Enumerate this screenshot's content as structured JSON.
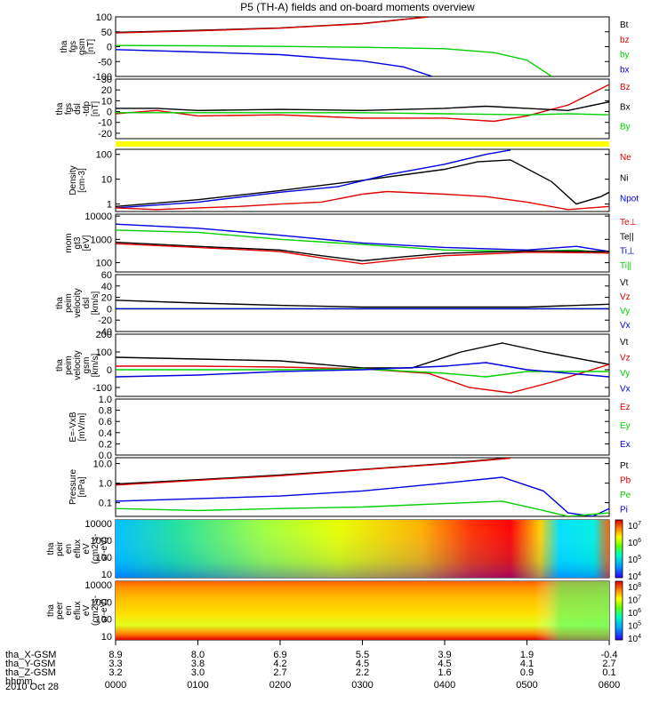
{
  "title": "P5 (TH-A) fields and on-board moments overview",
  "date_label": "2010 Oct 28",
  "colors": {
    "black": "#000000",
    "red": "#e00000",
    "green": "#00d000",
    "blue": "#0000e0",
    "yellow": "#ffff00"
  },
  "time_axis": {
    "ticks": [
      "0000",
      "0100",
      "0200",
      "0300",
      "0400",
      "0500",
      "0600"
    ],
    "rows": [
      {
        "label": "tha_X-GSM",
        "values": [
          "8.9",
          "8.0",
          "6.9",
          "5.5",
          "3.9",
          "1.9",
          "-0.4"
        ]
      },
      {
        "label": "tha_Y-GSM",
        "values": [
          "3.3",
          "3.8",
          "4.2",
          "4.5",
          "4.5",
          "4.1",
          "2.7"
        ]
      },
      {
        "label": "tha_Z-GSM",
        "values": [
          "3.2",
          "3.0",
          "2.7",
          "2.2",
          "1.6",
          "0.9",
          "0.1"
        ]
      },
      {
        "label": "hhmm",
        "values": []
      }
    ]
  },
  "chart_data": [
    {
      "type": "line",
      "ylabel": [
        "tha",
        "fgs",
        "gsm",
        "[nT]"
      ],
      "ylim": [
        -100,
        100
      ],
      "yticks": [
        "100",
        "50",
        "0",
        "-50",
        "-100"
      ],
      "legend": [
        "Bt",
        "bz",
        "by",
        "bx"
      ],
      "series": [
        {
          "name": "Bt",
          "color": "black",
          "x": [
            0,
            1,
            2,
            3,
            3.8
          ],
          "y": [
            48,
            55,
            63,
            78,
            100
          ]
        },
        {
          "name": "bz",
          "color": "red",
          "x": [
            0,
            1,
            2,
            3,
            3.8
          ],
          "y": [
            46,
            53,
            62,
            77,
            100
          ]
        },
        {
          "name": "by",
          "color": "green",
          "x": [
            0,
            1,
            2,
            3,
            4,
            4.6,
            5.0,
            5.3
          ],
          "y": [
            4,
            3,
            1,
            -2,
            -7,
            -20,
            -45,
            -100
          ]
        },
        {
          "name": "bx",
          "color": "blue",
          "x": [
            0,
            1,
            2,
            3,
            3.5,
            3.85
          ],
          "y": [
            -10,
            -18,
            -27,
            -48,
            -68,
            -100
          ]
        }
      ]
    },
    {
      "type": "line",
      "ylabel": [
        "tha",
        "fgs",
        "dsl",
        "-tdp",
        "[nT]"
      ],
      "ylim": [
        -25,
        30
      ],
      "yticks": [
        "30",
        "20",
        "10",
        "0",
        "-10",
        "-20"
      ],
      "legend": [
        "Bz",
        "Bx",
        "By"
      ],
      "series": [
        {
          "name": "Bz",
          "color": "red",
          "x": [
            0,
            0.5,
            1,
            2,
            3,
            4,
            4.6,
            5,
            5.5,
            6
          ],
          "y": [
            -2,
            1,
            -4,
            -3,
            -6,
            -6,
            -9,
            -4,
            6,
            25
          ]
        },
        {
          "name": "Bx",
          "color": "black",
          "x": [
            0,
            0.5,
            1,
            2,
            3,
            4,
            4.5,
            5,
            5.5,
            6
          ],
          "y": [
            3,
            3,
            1,
            2,
            1,
            3,
            5,
            3,
            1,
            9
          ]
        },
        {
          "name": "By",
          "color": "green",
          "x": [
            0,
            1,
            2,
            3,
            4,
            5,
            5.5,
            6
          ],
          "y": [
            -1,
            -1,
            -1,
            -1,
            -2,
            -3,
            -2,
            -3
          ]
        }
      ]
    },
    {
      "type": "line",
      "ylabel": [
        "Density",
        "[cm-3]"
      ],
      "ylim": [
        0.5,
        160
      ],
      "yscale": "log",
      "yticks": [
        "100",
        "10",
        "1"
      ],
      "legend": [
        "Ne",
        "Ni",
        "Npot"
      ],
      "series": [
        {
          "name": "Ni",
          "color": "black",
          "x": [
            0,
            1,
            2,
            3,
            4,
            4.4,
            4.8,
            5.3,
            5.6,
            5.9,
            6.0
          ],
          "y": [
            0.8,
            1.5,
            3.5,
            9,
            25,
            50,
            60,
            8,
            1,
            2,
            3
          ]
        },
        {
          "name": "Npot",
          "color": "blue",
          "x": [
            0,
            1,
            2,
            2.7,
            3.3,
            4.0,
            4.5,
            4.8
          ],
          "y": [
            0.7,
            1.2,
            3,
            5,
            15,
            40,
            100,
            150
          ]
        },
        {
          "name": "Ne",
          "color": "red",
          "x": [
            0,
            0.5,
            1,
            1.5,
            2,
            2.5,
            3,
            3.3,
            4,
            4.5,
            5,
            5.5,
            6
          ],
          "y": [
            0.7,
            0.6,
            0.7,
            0.8,
            1,
            1.2,
            2.5,
            3.2,
            2.5,
            2,
            1.2,
            0.6,
            0.8
          ]
        }
      ]
    },
    {
      "type": "line",
      "ylabel": [
        "mom",
        "gt3",
        "[eV]"
      ],
      "ylim": [
        40,
        12000
      ],
      "yscale": "log",
      "yticks": [
        "10000",
        "1000",
        "100"
      ],
      "legend": [
        "Te⊥",
        "Te||",
        "Ti⊥",
        "Ti||"
      ],
      "series": [
        {
          "name": "Ti⊥",
          "color": "blue",
          "x": [
            0,
            1,
            2,
            3,
            4,
            5,
            5.6,
            6
          ],
          "y": [
            4500,
            3000,
            1500,
            700,
            450,
            350,
            500,
            300
          ]
        },
        {
          "name": "Ti||",
          "color": "green",
          "x": [
            0,
            1,
            2,
            3,
            4,
            5,
            5.6,
            6
          ],
          "y": [
            2500,
            2000,
            1000,
            600,
            350,
            300,
            350,
            250
          ]
        },
        {
          "name": "Te||",
          "color": "black",
          "x": [
            0,
            1,
            2,
            2.5,
            3,
            3.5,
            4,
            5,
            6
          ],
          "y": [
            750,
            500,
            350,
            200,
            120,
            180,
            250,
            320,
            300
          ]
        },
        {
          "name": "Te⊥",
          "color": "red",
          "x": [
            0,
            1,
            2,
            2.5,
            3,
            3.5,
            4,
            5,
            6
          ],
          "y": [
            650,
            450,
            300,
            160,
            90,
            140,
            200,
            280,
            260
          ]
        }
      ]
    },
    {
      "type": "line",
      "ylabel": [
        "tha",
        "peim",
        "velocity",
        "dsl",
        "[km/s]"
      ],
      "ylim": [
        -40,
        60
      ],
      "yticks": [
        "60",
        "40",
        "20",
        "0",
        "-20",
        "-40"
      ],
      "legend": [
        "Vt",
        "Vz",
        "Vy",
        "Vx"
      ],
      "series": [
        {
          "name": "Vt",
          "color": "black",
          "x": [
            0,
            1,
            2,
            3,
            4,
            5,
            6
          ],
          "y": [
            15,
            10,
            6,
            3,
            3,
            3,
            8
          ]
        },
        {
          "name": "Vz",
          "color": "red",
          "x": [
            0,
            6
          ],
          "y": [
            0,
            0
          ]
        },
        {
          "name": "Vy",
          "color": "green",
          "x": [
            0,
            6
          ],
          "y": [
            0,
            0
          ]
        },
        {
          "name": "Vx",
          "color": "blue",
          "x": [
            0,
            6
          ],
          "y": [
            0,
            0
          ]
        }
      ]
    },
    {
      "type": "line",
      "ylabel": [
        "tha",
        "peim",
        "velocity",
        "gsm",
        "[km/s]"
      ],
      "ylim": [
        -150,
        200
      ],
      "yticks": [
        "200",
        "100",
        "0",
        "-100"
      ],
      "legend": [
        "Vt",
        "Vz",
        "Vy",
        "Vx"
      ],
      "series": [
        {
          "name": "Vt",
          "color": "black",
          "x": [
            0,
            1,
            2,
            3,
            3.6,
            4.2,
            4.7,
            5.2,
            6
          ],
          "y": [
            70,
            60,
            50,
            10,
            10,
            100,
            150,
            100,
            30
          ]
        },
        {
          "name": "Vz",
          "color": "red",
          "x": [
            0,
            1,
            2,
            3,
            3.8,
            4.3,
            4.8,
            5.3,
            6
          ],
          "y": [
            20,
            20,
            15,
            5,
            -20,
            -100,
            -130,
            -70,
            30
          ]
        },
        {
          "name": "Vy",
          "color": "green",
          "x": [
            0,
            1,
            2,
            3,
            4,
            4.5,
            5,
            6
          ],
          "y": [
            0,
            0,
            0,
            5,
            -20,
            -40,
            -10,
            -10
          ]
        },
        {
          "name": "Vx",
          "color": "blue",
          "x": [
            0,
            1,
            2,
            3,
            4,
            4.5,
            5,
            6
          ],
          "y": [
            -40,
            -30,
            -10,
            0,
            20,
            40,
            0,
            -40
          ]
        }
      ]
    },
    {
      "type": "line",
      "ylabel": [
        "E=-VxB",
        "[mV/m]"
      ],
      "ylim": [
        0,
        1
      ],
      "yticks": [
        "1.0",
        "0.8",
        "0.6",
        "0.4",
        "0.2",
        "0.0"
      ],
      "legend": [
        "Ez",
        "Ey",
        "Ex"
      ],
      "series": []
    },
    {
      "type": "line",
      "ylabel": [
        "Pressure",
        "[nPa]"
      ],
      "ylim": [
        0.02,
        20
      ],
      "yscale": "log",
      "yticks": [
        "10.0",
        "1.0",
        "0.1"
      ],
      "legend": [
        "Pt",
        "Pb",
        "Pe",
        "Pi"
      ],
      "series": [
        {
          "name": "Pt",
          "color": "black",
          "x": [
            0,
            1,
            2,
            3,
            4,
            4.8
          ],
          "y": [
            0.9,
            1.5,
            2.6,
            5,
            10,
            20
          ]
        },
        {
          "name": "Pb",
          "color": "red",
          "x": [
            0,
            1,
            2,
            3,
            4,
            4.8
          ],
          "y": [
            0.8,
            1.4,
            2.4,
            4.8,
            9.5,
            19
          ]
        },
        {
          "name": "Pi",
          "color": "blue",
          "x": [
            0,
            1,
            2,
            3,
            4,
            4.7,
            5.2,
            5.5,
            5.8,
            6
          ],
          "y": [
            0.12,
            0.16,
            0.22,
            0.4,
            1.0,
            2.0,
            0.4,
            0.03,
            0.02,
            0.05
          ]
        },
        {
          "name": "Pe",
          "color": "green",
          "x": [
            0,
            1,
            2,
            3,
            4,
            4.7,
            5.2,
            5.5,
            6
          ],
          "y": [
            0.05,
            0.04,
            0.05,
            0.06,
            0.09,
            0.12,
            0.04,
            0.02,
            0.03
          ]
        }
      ]
    },
    {
      "type": "heatmap",
      "ylabel": [
        "tha",
        "peir",
        "en",
        "eflux",
        "eV",
        "(cm2-s-",
        "sr-eV)"
      ],
      "yscale": "log",
      "yticks": [
        "10000",
        "1000",
        "100",
        "10"
      ],
      "colorbar_ticks": [
        "10^7",
        "10^6",
        "10^5",
        "10^4"
      ]
    },
    {
      "type": "heatmap",
      "ylabel": [
        "tha",
        "peer",
        "en",
        "eflux",
        "eV",
        "(cm2-s-",
        "sr-eV)"
      ],
      "yscale": "log",
      "yticks": [
        "10000",
        "1000",
        "100",
        "10"
      ],
      "colorbar_ticks": [
        "10^8",
        "10^7",
        "10^6",
        "10^5",
        "10^4"
      ]
    }
  ]
}
